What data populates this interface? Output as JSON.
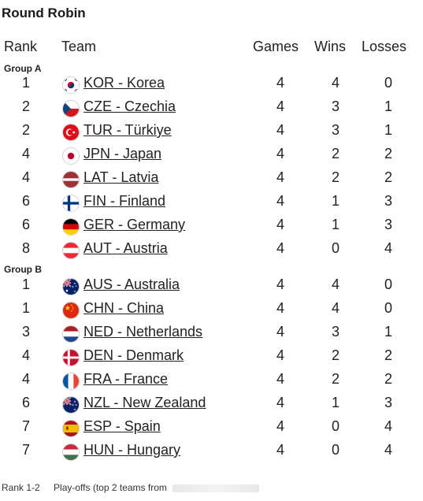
{
  "title": "Round Robin",
  "headers": {
    "rank": "Rank",
    "team": "Team",
    "games": "Games",
    "wins": "Wins",
    "losses": "Losses"
  },
  "groups": [
    {
      "label": "Group A",
      "rows": [
        {
          "rank": "1",
          "flag": "kor",
          "team": "KOR - Korea",
          "games": "4",
          "wins": "4",
          "losses": "0"
        },
        {
          "rank": "2",
          "flag": "cze",
          "team": "CZE - Czechia",
          "games": "4",
          "wins": "3",
          "losses": "1"
        },
        {
          "rank": "2",
          "flag": "tur",
          "team": "TUR - Türkiye",
          "games": "4",
          "wins": "3",
          "losses": "1"
        },
        {
          "rank": "4",
          "flag": "jpn",
          "team": "JPN - Japan",
          "games": "4",
          "wins": "2",
          "losses": "2"
        },
        {
          "rank": "4",
          "flag": "lat",
          "team": "LAT - Latvia",
          "games": "4",
          "wins": "2",
          "losses": "2"
        },
        {
          "rank": "6",
          "flag": "fin",
          "team": "FIN - Finland",
          "games": "4",
          "wins": "1",
          "losses": "3"
        },
        {
          "rank": "6",
          "flag": "ger",
          "team": "GER - Germany",
          "games": "4",
          "wins": "1",
          "losses": "3"
        },
        {
          "rank": "8",
          "flag": "aut",
          "team": "AUT - Austria",
          "games": "4",
          "wins": "0",
          "losses": "4"
        }
      ]
    },
    {
      "label": "Group B",
      "rows": [
        {
          "rank": "1",
          "flag": "aus",
          "team": "AUS - Australia",
          "games": "4",
          "wins": "4",
          "losses": "0"
        },
        {
          "rank": "1",
          "flag": "chn",
          "team": "CHN - China",
          "games": "4",
          "wins": "4",
          "losses": "0"
        },
        {
          "rank": "3",
          "flag": "ned",
          "team": "NED - Netherlands",
          "games": "4",
          "wins": "3",
          "losses": "1"
        },
        {
          "rank": "4",
          "flag": "den",
          "team": "DEN - Denmark",
          "games": "4",
          "wins": "2",
          "losses": "2"
        },
        {
          "rank": "4",
          "flag": "fra",
          "team": "FRA - France",
          "games": "4",
          "wins": "2",
          "losses": "2"
        },
        {
          "rank": "6",
          "flag": "nzl",
          "team": "NZL - New Zealand",
          "games": "4",
          "wins": "1",
          "losses": "3"
        },
        {
          "rank": "7",
          "flag": "esp",
          "team": "ESP - Spain",
          "games": "4",
          "wins": "0",
          "losses": "4"
        },
        {
          "rank": "7",
          "flag": "hun",
          "team": "HUN - Hungary",
          "games": "4",
          "wins": "0",
          "losses": "4"
        }
      ]
    }
  ],
  "footer": {
    "rank_range": "Rank 1-2",
    "text": "Play-offs (top 2 teams from"
  }
}
